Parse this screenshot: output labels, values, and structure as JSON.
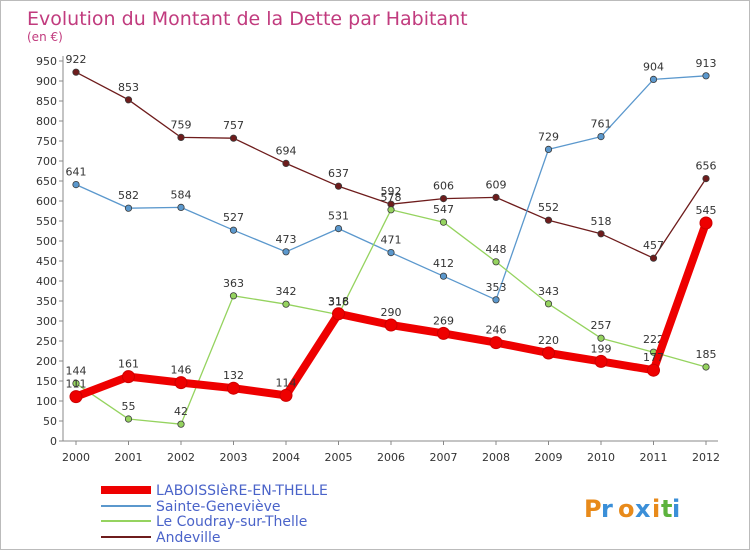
{
  "chart_data": {
    "type": "line",
    "title": "Evolution du Montant de la Dette par Habitant",
    "subtitle": "(en €)",
    "xlabel": "",
    "ylabel": "",
    "ylim": [
      0,
      950
    ],
    "yticks": [
      0,
      50,
      100,
      150,
      200,
      250,
      300,
      350,
      400,
      450,
      500,
      550,
      600,
      650,
      700,
      750,
      800,
      850,
      900,
      950
    ],
    "grid": false,
    "legend_position": "bottom-left",
    "categories": [
      "2000",
      "2001",
      "2002",
      "2003",
      "2004",
      "2005",
      "2006",
      "2007",
      "2008",
      "2009",
      "2010",
      "2011",
      "2012"
    ],
    "series": [
      {
        "name": "Andeville",
        "color": "#6e1c1c",
        "width": 1.3,
        "values": [
          922,
          853,
          759,
          757,
          694,
          637,
          592,
          606,
          609,
          552,
          518,
          457,
          656
        ]
      },
      {
        "name": "Sainte-Geneviève",
        "color": "#5b98cd",
        "width": 1.3,
        "values": [
          641,
          582,
          584,
          527,
          473,
          531,
          471,
          412,
          353,
          729,
          761,
          904,
          913
        ]
      },
      {
        "name": "Le Coudray-sur-Thelle",
        "color": "#95d35f",
        "width": 1.3,
        "values": [
          144,
          55,
          42,
          363,
          342,
          316,
          578,
          547,
          448,
          343,
          257,
          222,
          185
        ]
      },
      {
        "name": "LABOISSIèRE-EN-THELLE",
        "color": "#ee0000",
        "width": 8,
        "values": [
          111,
          161,
          146,
          132,
          114,
          318,
          290,
          269,
          246,
          220,
          199,
          177,
          545
        ]
      }
    ],
    "legend": [
      "LABOISSIèRE-EN-THELLE",
      "Sainte-Geneviève",
      "Le Coudray-sur-Thelle",
      "Andeville"
    ]
  },
  "logo": "Proxiti"
}
